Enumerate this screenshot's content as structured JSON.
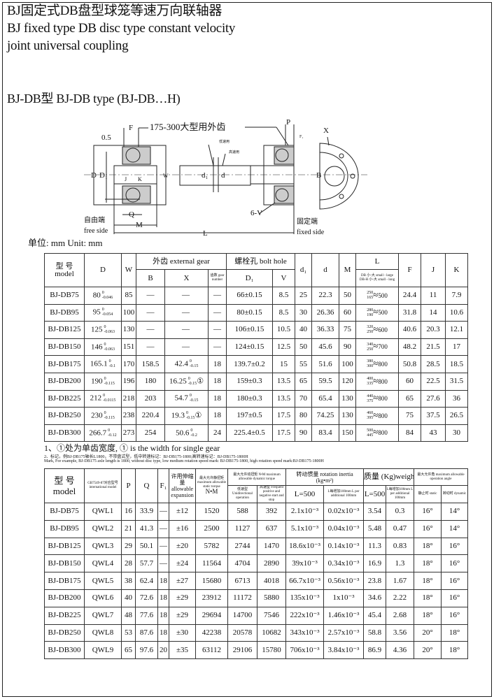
{
  "title": {
    "zh": "BJ固定式DB盘型球笼等速万向联轴器",
    "en1": "BJ fixed type DB disc type constant velocity",
    "en2": "joint universal coupling"
  },
  "subtitle": "BJ-DB型 BJ-DB type (BJ-DB…H)",
  "drawing": {
    "labels": {
      "half": "0.5",
      "F": "F",
      "ext_gear": "175-300大型用外齿",
      "low_speed": "低速用",
      "high_speed": "高速用",
      "P": "P",
      "F1": "F₁",
      "X": "X",
      "D": "D",
      "D1": "D₁",
      "J": "J",
      "K": "K",
      "W": "W",
      "d1": "d₁",
      "d": "d",
      "B": "B",
      "Q": "Q",
      "M": "M",
      "L": "L",
      "six_v": "6-V",
      "free_zh": "自由端",
      "free_en": "free side",
      "fixed_zh": "固定端",
      "fixed_en": "fixed side"
    }
  },
  "unit": "单位: mm Unit: mm",
  "table1": {
    "headers": {
      "model": "型 号",
      "model_en": "model",
      "D": "D",
      "W": "W",
      "ext_gear": "外齿  external gear",
      "B": "B",
      "X": "X",
      "gear_number": "齿数 gear number",
      "bolt_hole": "螺栓孔 bolt hole",
      "D1": "D₁",
      "V": "V",
      "d1": "d₁",
      "d": "d",
      "M": "M",
      "L": "L",
      "L_sub1": "DB 小-大 small - large",
      "L_sub2": "DB-H 小-大 small - long",
      "F": "F",
      "J": "J",
      "K": "K"
    },
    "rows": [
      {
        "model": "BJ-DB75",
        "D": {
          "b": "80",
          "u": "0",
          "l": "-0.046"
        },
        "W": "85",
        "B": "—",
        "X": {
          "b": "—",
          "u": "",
          "l": "",
          "n": ""
        },
        "gn": "—",
        "D1": "66±0.15",
        "V": "8.5",
        "d1": "25",
        "d": "22.3",
        "M": "50",
        "L": {
          "hi": "250",
          "lo": "165",
          "max": "500"
        },
        "F": "24.4",
        "J": "11",
        "K": "7.9"
      },
      {
        "model": "BJ-DB95",
        "D": {
          "b": "95",
          "u": "0",
          "l": "-0.054"
        },
        "W": "100",
        "B": "—",
        "X": {
          "b": "—",
          "u": "",
          "l": "",
          "n": ""
        },
        "gn": "—",
        "D1": "80±0.15",
        "V": "8.5",
        "d1": "30",
        "d": "26.36",
        "M": "60",
        "L": {
          "hi": "280",
          "lo": "190",
          "max": "500"
        },
        "F": "31.8",
        "J": "14",
        "K": "10.6"
      },
      {
        "model": "BJ-DB125",
        "D": {
          "b": "125",
          "u": "0",
          "l": "-0.063"
        },
        "W": "130",
        "B": "—",
        "X": {
          "b": "—",
          "u": "",
          "l": "",
          "n": ""
        },
        "gn": "—",
        "D1": "106±0.15",
        "V": "10.5",
        "d1": "40",
        "d": "36.33",
        "M": "75",
        "L": {
          "hi": "320",
          "lo": "250",
          "max": "600"
        },
        "F": "40.6",
        "J": "20.3",
        "K": "12.1"
      },
      {
        "model": "BJ-DB150",
        "D": {
          "b": "146",
          "u": "0",
          "l": "-0.063"
        },
        "W": "151",
        "B": "—",
        "X": {
          "b": "—",
          "u": "",
          "l": "",
          "n": ""
        },
        "gn": "—",
        "D1": "124±0.15",
        "V": "12.5",
        "d1": "50",
        "d": "45.6",
        "M": "90",
        "L": {
          "hi": "340",
          "lo": "250",
          "max": "700"
        },
        "F": "48.2",
        "J": "21.5",
        "K": "17"
      },
      {
        "model": "BJ-DB175",
        "D": {
          "b": "165.1",
          "u": "0",
          "l": "-0.1"
        },
        "W": "170",
        "B": "158.5",
        "X": {
          "b": "42.4",
          "u": "0",
          "l": "-0.15",
          "n": ""
        },
        "gn": "18",
        "D1": "139.7±0.2",
        "V": "15",
        "d1": "55",
        "d": "51.6",
        "M": "100",
        "L": {
          "hi": "380",
          "lo": "300",
          "max": "800"
        },
        "F": "50.8",
        "J": "28.5",
        "K": "18.5"
      },
      {
        "model": "BJ-DB200",
        "D": {
          "b": "190",
          "u": "0",
          "l": "-0.115"
        },
        "W": "196",
        "B": "180",
        "X": {
          "b": "16.25",
          "u": "0",
          "l": "-0.15",
          "n": "①"
        },
        "gn": "18",
        "D1": "159±0.3",
        "V": "13.5",
        "d1": "65",
        "d": "59.5",
        "M": "120",
        "L": {
          "hi": "400",
          "lo": "335",
          "max": "800"
        },
        "F": "60",
        "J": "22.5",
        "K": "31.5"
      },
      {
        "model": "BJ-DB225",
        "D": {
          "b": "212",
          "u": "0",
          "l": "-0.0115"
        },
        "W": "218",
        "B": "203",
        "X": {
          "b": "54.7",
          "u": "0",
          "l": "-0.15",
          "n": ""
        },
        "gn": "18",
        "D1": "180±0.3",
        "V": "13.5",
        "d1": "70",
        "d": "65.4",
        "M": "130",
        "L": {
          "hi": "440",
          "lo": "375",
          "max": "800"
        },
        "F": "65",
        "J": "27.6",
        "K": "36"
      },
      {
        "model": "BJ-DB250",
        "D": {
          "b": "230",
          "u": "0",
          "l": "-0.115"
        },
        "W": "238",
        "B": "220.4",
        "X": {
          "b": "19.3",
          "u": "0",
          "l": "-0.15",
          "n": "①"
        },
        "gn": "18",
        "D1": "197±0.5",
        "V": "17.5",
        "d1": "80",
        "d": "74.25",
        "M": "130",
        "L": {
          "hi": "460",
          "lo": "395",
          "max": "800"
        },
        "F": "75",
        "J": "37.5",
        "K": "26.5"
      },
      {
        "model": "BJ-DB300",
        "D": {
          "b": "266.7",
          "u": "0",
          "l": "-0.12"
        },
        "W": "273",
        "B": "254",
        "X": {
          "b": "50.6",
          "u": "0",
          "l": "-0.2",
          "n": ""
        },
        "gn": "24",
        "D1": "225.4±0.5",
        "V": "17.5",
        "d1": "90",
        "d": "83.4",
        "M": "150",
        "L": {
          "hi": "500",
          "lo": "445",
          "max": "800"
        },
        "F": "84",
        "J": "43",
        "K": "30"
      }
    ]
  },
  "notes": {
    "n1": "1、①处为单齿宽度, ① is the width for single gear",
    "n2": "2、标记，例BJ-DB175轴长L1800，不带盘式型，低中转速标记：BJ-DB175-1800;高转速标记：BJ-DB175-1800H",
    "n3": "Mark, For example, BJ-DB175 axle length is 1800, without disc type, low medium rotation speed mark: BJ-DB175-1800, high rotation speed mark:BJ-DB175-1800H"
  },
  "table2": {
    "headers": {
      "model": "型 号",
      "model_en": "model",
      "intl": "GB7549-87对应型号 international model",
      "P": "P",
      "Q": "Q",
      "F1": "F₁",
      "exp": "许用伸缩量 allowable expansion",
      "static_torque": "最大允许静扭矩 maximum allowable static torque",
      "nm": "N•M",
      "dyn_torque": "最大允许动扭矩 N•M maximum allowable dynamic torque",
      "low": "低速型 Unidirectional operation",
      "high": "高速型 Frequent positive and negative start and stop",
      "inertia": "转动惯量 rotation inertia",
      "inertia_unit": "(kg•m²)",
      "L500": "L=500",
      "per100": "L每增加100mm L per additional 100mm",
      "weight": "质量 (Kg)weight",
      "wL500": "L=500",
      "wper100": "L每增加100mm L per additional 100mm",
      "angle": "最大允许角 maximum allowable operation angle",
      "static": "静止时 static",
      "dynamic": "转动时 dynamic"
    },
    "rows": [
      [
        "BJ-DB75",
        "QWL1",
        "16",
        "33.9",
        "—",
        "±12",
        "1520",
        "588",
        "392",
        "2.1x10⁻³",
        "0.02x10⁻³",
        "3.54",
        "0.3",
        "16°",
        "14°"
      ],
      [
        "BJ-DB95",
        "QWL2",
        "21",
        "41.3",
        "—",
        "±16",
        "2500",
        "1127",
        "637",
        "5.1x10⁻³",
        "0.04x10⁻³",
        "5.48",
        "0.47",
        "16°",
        "14°"
      ],
      [
        "BJ-DB125",
        "QWL3",
        "29",
        "50.1",
        "—",
        "±20",
        "5782",
        "2744",
        "1470",
        "18.6x10⁻³",
        "0.14x10⁻³",
        "11.3",
        "0.83",
        "18°",
        "16°"
      ],
      [
        "BJ-DB150",
        "QWL4",
        "28",
        "57.7",
        "—",
        "±24",
        "11564",
        "4704",
        "2890",
        "39x10⁻³",
        "0.34x10⁻³",
        "16.9",
        "1.3",
        "18°",
        "16°"
      ],
      [
        "BJ-DB175",
        "QWL5",
        "38",
        "62.4",
        "18",
        "±27",
        "15680",
        "6713",
        "4018",
        "66.7x10⁻³",
        "0.56x10⁻³",
        "23.8",
        "1.67",
        "18°",
        "16°"
      ],
      [
        "BJ-DB200",
        "QWL6",
        "40",
        "72.6",
        "18",
        "±29",
        "23912",
        "11172",
        "5880",
        "135x10⁻³",
        "1x10⁻³",
        "34.6",
        "2.22",
        "18°",
        "16°"
      ],
      [
        "BJ-DB225",
        "QWL7",
        "48",
        "77.6",
        "18",
        "±29",
        "29694",
        "14700",
        "7546",
        "222x10⁻³",
        "1.46x10⁻³",
        "45.4",
        "2.68",
        "18°",
        "16°"
      ],
      [
        "BJ-DB250",
        "QWL8",
        "53",
        "87.6",
        "18",
        "±30",
        "42238",
        "20578",
        "10682",
        "343x10⁻³",
        "2.57x10⁻³",
        "58.8",
        "3.56",
        "20°",
        "18°"
      ],
      [
        "BJ-DB300",
        "QWL9",
        "65",
        "97.6",
        "20",
        "±35",
        "63112",
        "29106",
        "15780",
        "706x10⁻³",
        "3.84x10⁻³",
        "86.9",
        "4.36",
        "20°",
        "18°"
      ]
    ]
  }
}
